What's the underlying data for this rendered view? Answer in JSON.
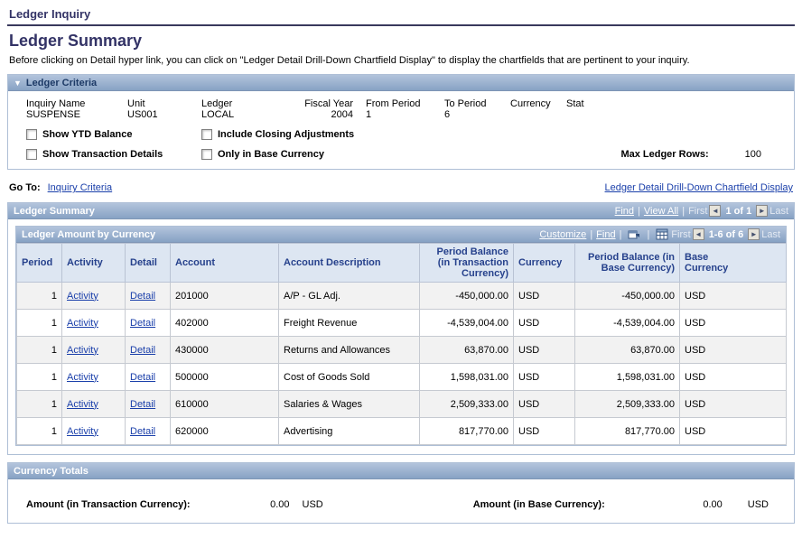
{
  "colors": {
    "title": "#333366",
    "link": "#1a3faa",
    "bar_top": "#b3c4dc",
    "bar_bottom": "#87a2c4",
    "bar_text": "#ffffff",
    "box_border": "#aebfd6",
    "th_bg": "#dde6f2",
    "th_text": "#26418c",
    "row_odd": "#f2f2f2",
    "row_even": "#ffffff"
  },
  "page": {
    "breadcrumb": "Ledger Inquiry",
    "title": "Ledger Summary",
    "description": "Before clicking on Detail hyper link, you can click on \"Ledger Detail Drill-Down Chartfield Display\" to display the chartfields that are pertinent to your inquiry."
  },
  "criteria": {
    "header": "Ledger Criteria",
    "collapse_icon": "▼",
    "fields": [
      {
        "label": "Inquiry Name",
        "value": "SUSPENSE"
      },
      {
        "label": "Unit",
        "value": "US001"
      },
      {
        "label": "Ledger",
        "value": "LOCAL"
      },
      {
        "label": "Fiscal Year",
        "value": "2004"
      },
      {
        "label": "From Period",
        "value": "1"
      },
      {
        "label": "To Period",
        "value": "6"
      },
      {
        "label": "Currency",
        "value": ""
      },
      {
        "label": "Stat",
        "value": ""
      }
    ],
    "checkboxes": [
      {
        "label": "Show YTD Balance",
        "checked": false
      },
      {
        "label": "Include Closing Adjustments",
        "checked": false
      },
      {
        "label": "Show Transaction Details",
        "checked": false
      },
      {
        "label": "Only in Base Currency",
        "checked": false
      }
    ],
    "max_ledger_rows_label": "Max Ledger Rows:",
    "max_ledger_rows_value": "100"
  },
  "goto": {
    "label": "Go To:",
    "link": "Inquiry Criteria",
    "right_link": "Ledger Detail Drill-Down Chartfield Display"
  },
  "summary_section": {
    "header": "Ledger Summary",
    "nav": {
      "find": "Find",
      "view_all": "View All",
      "first": "First",
      "prev": "◄",
      "position": "1 of 1",
      "next": "►",
      "last": "Last"
    }
  },
  "grid": {
    "header": "Ledger Amount by Currency",
    "toolbar": {
      "customize": "Customize",
      "find": "Find",
      "first": "First",
      "prev": "◄",
      "position": "1-6 of 6",
      "next": "►",
      "last": "Last"
    },
    "columns": [
      "Period",
      "Activity",
      "Detail",
      "Account",
      "Account Description",
      "Period Balance\n(in Transaction\nCurrency)",
      "Currency",
      "Period Balance (in\nBase Currency)",
      "Base\nCurrency"
    ],
    "rows": [
      {
        "period": "1",
        "activity": "Activity",
        "detail": "Detail",
        "account": "201000",
        "description": "A/P - GL Adj.",
        "txn_balance": "-450,000.00",
        "currency": "USD",
        "base_balance": "-450,000.00",
        "base_currency": "USD"
      },
      {
        "period": "1",
        "activity": "Activity",
        "detail": "Detail",
        "account": "402000",
        "description": "Freight Revenue",
        "txn_balance": "-4,539,004.00",
        "currency": "USD",
        "base_balance": "-4,539,004.00",
        "base_currency": "USD"
      },
      {
        "period": "1",
        "activity": "Activity",
        "detail": "Detail",
        "account": "430000",
        "description": "Returns and Allowances",
        "txn_balance": "63,870.00",
        "currency": "USD",
        "base_balance": "63,870.00",
        "base_currency": "USD"
      },
      {
        "period": "1",
        "activity": "Activity",
        "detail": "Detail",
        "account": "500000",
        "description": "Cost of Goods Sold",
        "txn_balance": "1,598,031.00",
        "currency": "USD",
        "base_balance": "1,598,031.00",
        "base_currency": "USD"
      },
      {
        "period": "1",
        "activity": "Activity",
        "detail": "Detail",
        "account": "610000",
        "description": "Salaries & Wages",
        "txn_balance": "2,509,333.00",
        "currency": "USD",
        "base_balance": "2,509,333.00",
        "base_currency": "USD"
      },
      {
        "period": "1",
        "activity": "Activity",
        "detail": "Detail",
        "account": "620000",
        "description": "Advertising",
        "txn_balance": "817,770.00",
        "currency": "USD",
        "base_balance": "817,770.00",
        "base_currency": "USD"
      }
    ]
  },
  "totals": {
    "header": "Currency Totals",
    "txn_label": "Amount (in Transaction Currency):",
    "txn_value": "0.00",
    "txn_currency": "USD",
    "base_label": "Amount (in Base Currency):",
    "base_value": "0.00",
    "base_currency": "USD"
  }
}
